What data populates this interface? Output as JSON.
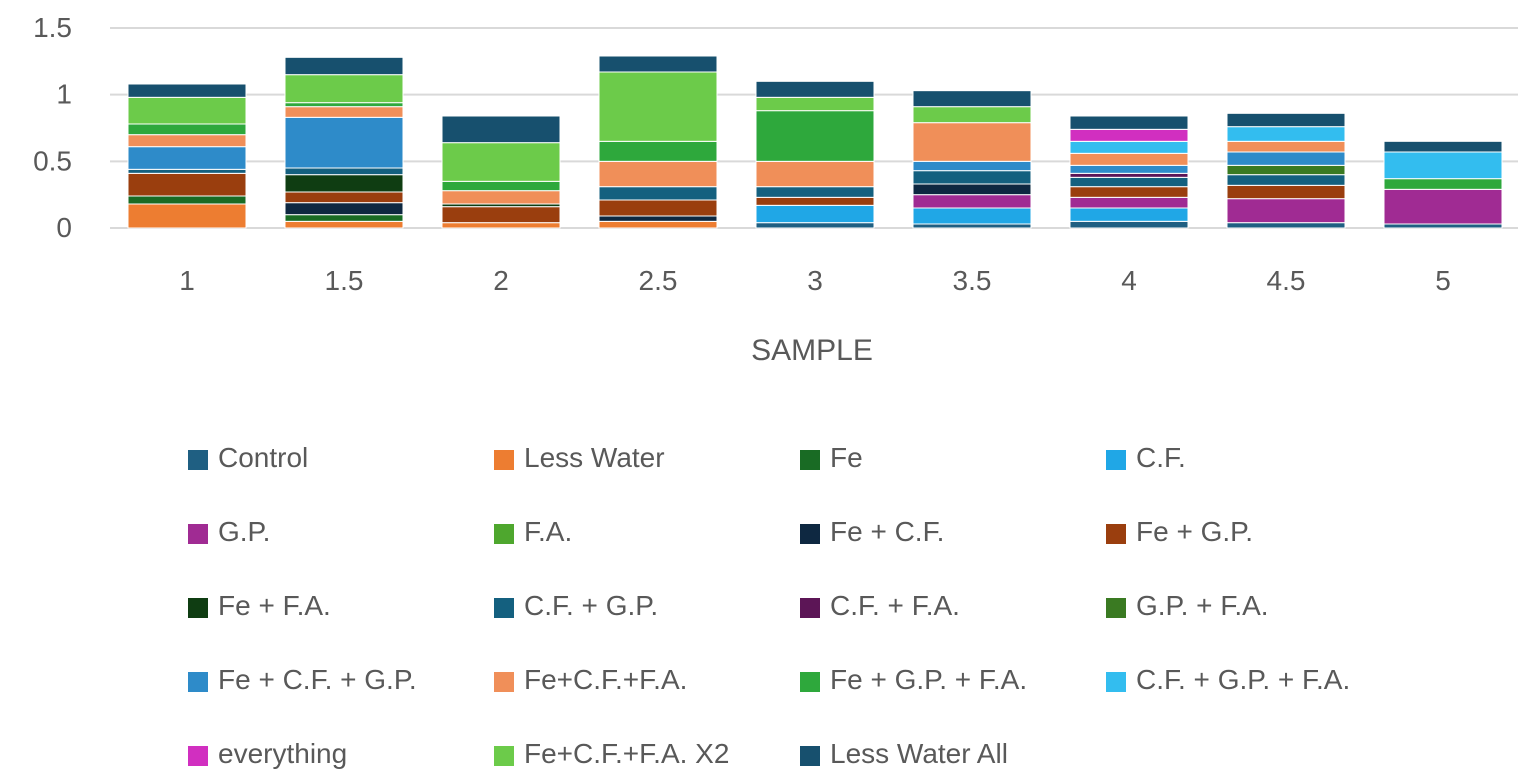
{
  "chart_data": {
    "type": "bar",
    "stacked": true,
    "xlabel": "SAMPLE",
    "ylabel": "",
    "ylim": [
      0,
      1.5
    ],
    "yticks": [
      0,
      0.5,
      1,
      1.5
    ],
    "ytick_labels": [
      "0",
      "0.5",
      "1",
      "1.5"
    ],
    "categories": [
      "1",
      "1.5",
      "2",
      "2.5",
      "3",
      "3.5",
      "4",
      "4.5",
      "5"
    ],
    "grid": true,
    "legend_position": "bottom",
    "series": [
      {
        "name": "Control",
        "color": "#1F5F82",
        "values": [
          0,
          0,
          0,
          0,
          0.04,
          0.03,
          0.05,
          0.04,
          0.03
        ]
      },
      {
        "name": "Less Water",
        "color": "#ED7D31",
        "values": [
          0.18,
          0.05,
          0.04,
          0.05,
          0,
          0,
          0,
          0,
          0
        ]
      },
      {
        "name": "Fe",
        "color": "#196B24",
        "values": [
          0.06,
          0.05,
          0,
          0,
          0,
          0,
          0,
          0,
          0
        ]
      },
      {
        "name": "C.F.",
        "color": "#20A7E6",
        "values": [
          0,
          0,
          0,
          0,
          0.13,
          0.12,
          0.1,
          0,
          0
        ]
      },
      {
        "name": "G.P.",
        "color": "#A02B93",
        "values": [
          0,
          0,
          0,
          0,
          0,
          0.1,
          0.08,
          0.18,
          0.26
        ]
      },
      {
        "name": "F.A.",
        "color": "#4EA72E",
        "values": [
          0,
          0,
          0,
          0,
          0,
          0,
          0,
          0,
          0
        ]
      },
      {
        "name": "Fe + C.F.",
        "color": "#0E2841",
        "values": [
          0,
          0.09,
          0,
          0.04,
          0,
          0.08,
          0,
          0,
          0
        ]
      },
      {
        "name": "Fe + G.P.",
        "color": "#9A3E0E",
        "values": [
          0.17,
          0.08,
          0.12,
          0.12,
          0.06,
          0,
          0.08,
          0.1,
          0
        ]
      },
      {
        "name": "Fe + F.A.",
        "color": "#0F3D12",
        "values": [
          0,
          0.13,
          0.02,
          0,
          0,
          0,
          0,
          0,
          0
        ]
      },
      {
        "name": "C.F. + G.P.",
        "color": "#14607F",
        "values": [
          0.03,
          0.05,
          0,
          0.1,
          0.08,
          0.1,
          0.07,
          0.08,
          0
        ]
      },
      {
        "name": "C.F. + F.A.",
        "color": "#5C1556",
        "values": [
          0,
          0,
          0,
          0,
          0,
          0,
          0.03,
          0,
          0
        ]
      },
      {
        "name": "G.P. + F.A.",
        "color": "#3A7A22",
        "values": [
          0,
          0,
          0,
          0,
          0,
          0,
          0,
          0.07,
          0
        ]
      },
      {
        "name": "Fe + C.F. + G.P.",
        "color": "#2E8BC9",
        "values": [
          0.17,
          0.38,
          0,
          0,
          0,
          0.07,
          0.06,
          0.1,
          0
        ]
      },
      {
        "name": "Fe+C.F.+F.A.",
        "color": "#F08F59",
        "values": [
          0.09,
          0.08,
          0.1,
          0.19,
          0.19,
          0.29,
          0.09,
          0.08,
          0
        ]
      },
      {
        "name": "Fe + G.P. + F.A.",
        "color": "#2EA83C",
        "values": [
          0.08,
          0.03,
          0.07,
          0.15,
          0.38,
          0,
          0,
          0,
          0.08
        ]
      },
      {
        "name": "C.F. + G.P. + F.A.",
        "color": "#33BDEF",
        "values": [
          0,
          0,
          0,
          0,
          0,
          0,
          0.09,
          0.11,
          0.2
        ]
      },
      {
        "name": "everything",
        "color": "#D12FC0",
        "values": [
          0,
          0,
          0,
          0,
          0,
          0,
          0.09,
          0,
          0
        ]
      },
      {
        "name": "Fe+C.F.+F.A. X2",
        "color": "#6CCB4A",
        "values": [
          0.2,
          0.21,
          0.29,
          0.52,
          0.1,
          0.12,
          0,
          0,
          0
        ]
      },
      {
        "name": "Less Water All",
        "color": "#17506E",
        "values": [
          0.1,
          0.13,
          0.2,
          0.12,
          0.12,
          0.12,
          0.1,
          0.1,
          0.08
        ]
      }
    ]
  }
}
